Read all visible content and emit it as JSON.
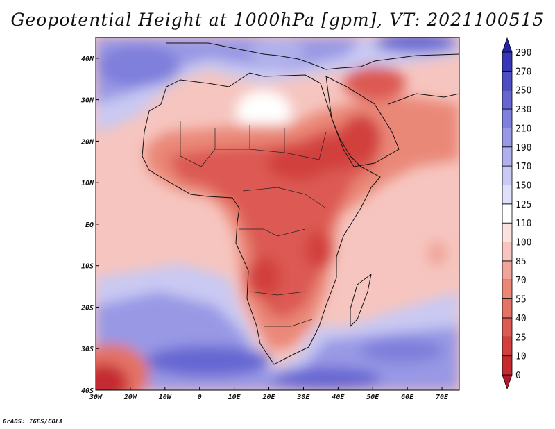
{
  "title": "Geopotential Height at 1000hPa [gpm], VT: 2021100515",
  "footer": "GrADS: IGES/COLA",
  "map": {
    "lon_range": [
      -30,
      75
    ],
    "lat_range": [
      -40,
      45
    ],
    "lat_ticks": [
      {
        "lat": 40,
        "label": "40N"
      },
      {
        "lat": 30,
        "label": "30N"
      },
      {
        "lat": 20,
        "label": "20N"
      },
      {
        "lat": 10,
        "label": "10N"
      },
      {
        "lat": 0,
        "label": "EQ"
      },
      {
        "lat": -10,
        "label": "10S"
      },
      {
        "lat": -20,
        "label": "20S"
      },
      {
        "lat": -30,
        "label": "30S"
      },
      {
        "lat": -40,
        "label": "40S"
      }
    ],
    "lon_ticks": [
      {
        "lon": -30,
        "label": "30W"
      },
      {
        "lon": -20,
        "label": "20W"
      },
      {
        "lon": -10,
        "label": "10W"
      },
      {
        "lon": 0,
        "label": "0"
      },
      {
        "lon": 10,
        "label": "10E"
      },
      {
        "lon": 20,
        "label": "20E"
      },
      {
        "lon": 30,
        "label": "30E"
      },
      {
        "lon": 40,
        "label": "40E"
      },
      {
        "lon": 50,
        "label": "50E"
      },
      {
        "lon": 60,
        "label": "60E"
      },
      {
        "lon": 70,
        "label": "70E"
      }
    ]
  },
  "colorbar": {
    "levels": [
      "0",
      "10",
      "25",
      "40",
      "55",
      "70",
      "85",
      "100",
      "110",
      "125",
      "150",
      "170",
      "190",
      "210",
      "230",
      "250",
      "270",
      "290"
    ],
    "colors": [
      "#b2182b",
      "#c42a30",
      "#d23f3d",
      "#dc5a52",
      "#e47265",
      "#ea8878",
      "#f0a49a",
      "#f6c5bf",
      "#fbe2de",
      "#ffffff",
      "#e0e0fa",
      "#c9c9f3",
      "#b0b0ec",
      "#9898e5",
      "#7f7fdc",
      "#6666d2",
      "#4d4dc6",
      "#3737b8",
      "#2424a8"
    ]
  }
}
